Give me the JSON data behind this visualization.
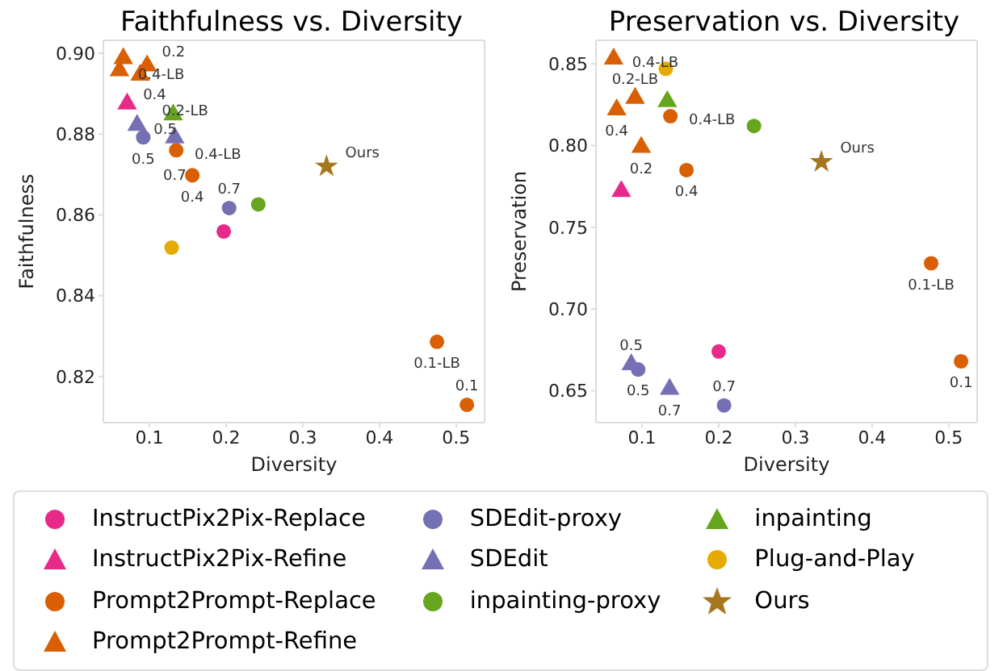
{
  "chart_data": [
    {
      "type": "scatter",
      "title": "Faithfulness vs. Diversity",
      "xlabel": "Diversity",
      "ylabel": "Faithfulness",
      "xlim": [
        0.04,
        0.537
      ],
      "ylim": [
        0.8086,
        0.9032
      ],
      "xticks": [
        0.1,
        0.2,
        0.3,
        0.4,
        0.5
      ],
      "yticks": [
        0.82,
        0.84,
        0.86,
        0.88,
        {
          "value": 0.9,
          "label": "0.90"
        }
      ],
      "legend": "bottom",
      "series": [
        {
          "name": "InstructPix2Pix-Replace",
          "color": "#e7298a",
          "marker": "circle",
          "x": [
            0.197
          ],
          "values": [
            0.8559
          ]
        },
        {
          "name": "InstructPix2Pix-Refine",
          "color": "#e7298a",
          "marker": "triangle",
          "x": [
            0.071
          ],
          "values": [
            0.8875
          ]
        },
        {
          "name": "Prompt2Prompt-Replace",
          "color": "#d95f02",
          "marker": "circle",
          "x": [
            0.135,
            0.156,
            0.475,
            0.514
          ],
          "values": [
            0.876,
            0.8698,
            0.8286,
            0.813
          ]
        },
        {
          "name": "Prompt2Prompt-Refine",
          "color": "#d95f02",
          "marker": "triangle",
          "x": [
            0.066,
            0.061,
            0.097,
            0.088
          ],
          "values": [
            0.8987,
            0.8957,
            0.8969,
            0.8946
          ]
        },
        {
          "name": "SDEdit-proxy",
          "color": "#7570b3",
          "marker": "circle",
          "x": [
            0.092,
            0.204
          ],
          "values": [
            0.8792,
            0.8617
          ]
        },
        {
          "name": "SDEdit",
          "color": "#7570b3",
          "marker": "triangle",
          "x": [
            0.084,
            0.133
          ],
          "values": [
            0.8822,
            0.8791
          ]
        },
        {
          "name": "inpainting-proxy",
          "color": "#66a61e",
          "marker": "circle",
          "x": [
            0.242
          ],
          "values": [
            0.8626
          ]
        },
        {
          "name": "inpainting",
          "color": "#66a61e",
          "marker": "triangle",
          "x": [
            0.131
          ],
          "values": [
            0.8848
          ]
        },
        {
          "name": "Plug-and-Play",
          "color": "#e6ab02",
          "marker": "circle",
          "x": [
            0.129
          ],
          "values": [
            0.8519
          ]
        },
        {
          "name": "Ours",
          "color": "#a6761d",
          "marker": "star",
          "x": [
            0.331
          ],
          "values": [
            0.872
          ]
        }
      ],
      "annotations": [
        {
          "text": "0.4-LB",
          "x": 0.135,
          "y": 0.876
        },
        {
          "text": "0.4",
          "x": 0.156,
          "y": 0.8698
        },
        {
          "text": "0.1-LB",
          "x": 0.475,
          "y": 0.8286
        },
        {
          "text": "0.1",
          "x": 0.514,
          "y": 0.813
        },
        {
          "text": "0.4",
          "x": 0.066,
          "y": 0.8987
        },
        {
          "text": "0.4-LB",
          "x": 0.061,
          "y": 0.8957
        },
        {
          "text": "0.2",
          "x": 0.097,
          "y": 0.8969
        },
        {
          "text": "0.2-LB",
          "x": 0.088,
          "y": 0.8946
        },
        {
          "text": "0.5",
          "x": 0.092,
          "y": 0.8792
        },
        {
          "text": "0.7",
          "x": 0.204,
          "y": 0.8617
        },
        {
          "text": "0.5",
          "x": 0.084,
          "y": 0.8822
        },
        {
          "text": "0.7",
          "x": 0.133,
          "y": 0.8791
        },
        {
          "text": "Ours",
          "x": 0.331,
          "y": 0.872
        }
      ]
    },
    {
      "type": "scatter",
      "title": "Preservation vs. Diversity",
      "xlabel": "Diversity",
      "ylabel": "Preservation",
      "xlim": [
        0.04,
        0.537
      ],
      "ylim": [
        0.6305,
        0.8644
      ],
      "xticks": [
        0.1,
        0.2,
        0.3,
        0.4,
        0.5
      ],
      "yticks": [
        0.65,
        {
          "value": 0.7,
          "label": "0.70"
        },
        0.75,
        {
          "value": 0.8,
          "label": "0.80"
        },
        0.85
      ],
      "series": [
        {
          "color": "#e7298a",
          "marker": "circle",
          "x": [
            0.2
          ],
          "values": [
            0.674
          ]
        },
        {
          "color": "#e7298a",
          "marker": "triangle",
          "x": [
            0.073
          ],
          "values": [
            0.772
          ]
        },
        {
          "color": "#d95f02",
          "marker": "circle",
          "x": [
            0.137,
            0.158,
            0.477,
            0.516
          ],
          "values": [
            0.818,
            0.785,
            0.728,
            0.668
          ]
        },
        {
          "color": "#d95f02",
          "marker": "triangle",
          "x": [
            0.067,
            0.063,
            0.099,
            0.091
          ],
          "values": [
            0.822,
            0.853,
            0.799,
            0.829
          ]
        },
        {
          "color": "#7570b3",
          "marker": "circle",
          "x": [
            0.095,
            0.207
          ],
          "values": [
            0.663,
            0.641
          ]
        },
        {
          "color": "#7570b3",
          "marker": "triangle",
          "x": [
            0.086,
            0.136
          ],
          "values": [
            0.666,
            0.651
          ]
        },
        {
          "color": "#66a61e",
          "marker": "circle",
          "x": [
            0.246
          ],
          "values": [
            0.812
          ]
        },
        {
          "color": "#66a61e",
          "marker": "triangle",
          "x": [
            0.133
          ],
          "values": [
            0.827
          ]
        },
        {
          "color": "#e6ab02",
          "marker": "circle",
          "x": [
            0.131
          ],
          "values": [
            0.847
          ]
        },
        {
          "color": "#a6761d",
          "marker": "star",
          "x": [
            0.334
          ],
          "values": [
            0.79
          ]
        }
      ],
      "annotations": [
        {
          "text": "0.4-LB",
          "x": 0.137,
          "y": 0.818
        },
        {
          "text": "0.4",
          "x": 0.158,
          "y": 0.785
        },
        {
          "text": "0.1-LB",
          "x": 0.477,
          "y": 0.728
        },
        {
          "text": "0.1",
          "x": 0.516,
          "y": 0.668
        },
        {
          "text": "0.4",
          "x": 0.067,
          "y": 0.822
        },
        {
          "text": "0.4-LB",
          "x": 0.063,
          "y": 0.853
        },
        {
          "text": "0.2",
          "x": 0.099,
          "y": 0.799
        },
        {
          "text": "0.2-LB",
          "x": 0.091,
          "y": 0.829
        },
        {
          "text": "0.5",
          "x": 0.095,
          "y": 0.663
        },
        {
          "text": "0.7",
          "x": 0.207,
          "y": 0.641
        },
        {
          "text": "0.5",
          "x": 0.086,
          "y": 0.666
        },
        {
          "text": "0.7",
          "x": 0.136,
          "y": 0.651
        },
        {
          "text": "Ours",
          "x": 0.334,
          "y": 0.79
        }
      ]
    }
  ]
}
